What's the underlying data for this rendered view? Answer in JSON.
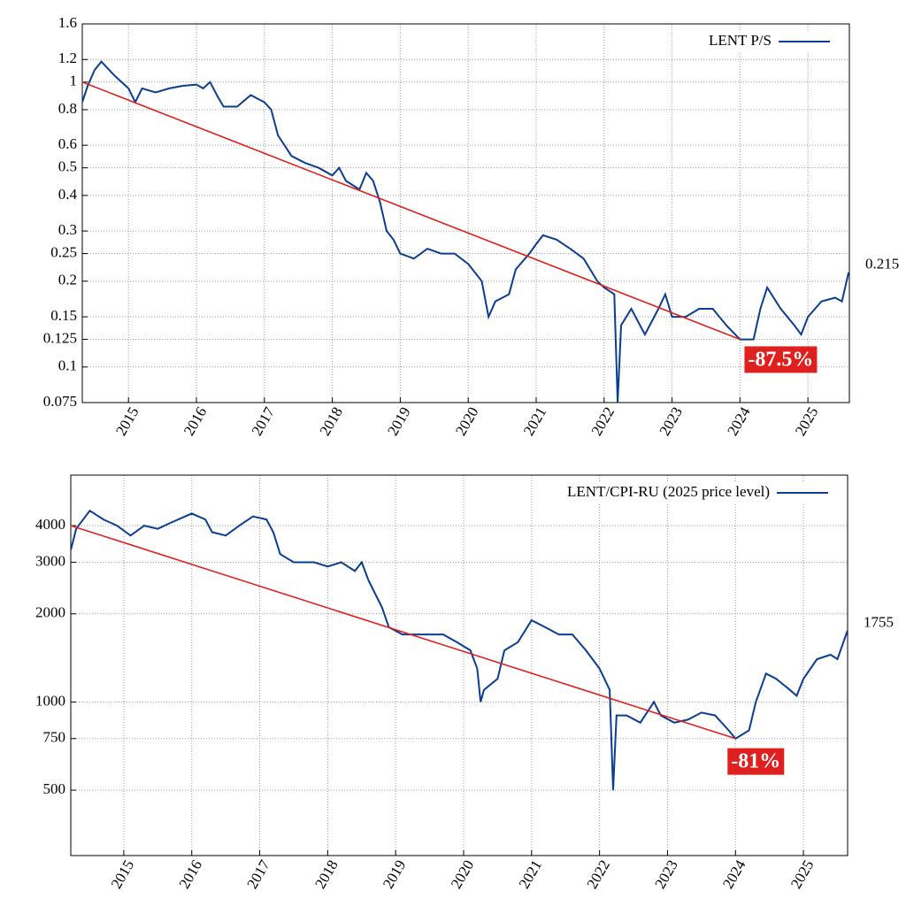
{
  "chart_data": [
    {
      "type": "line",
      "log_y": true,
      "grid": true,
      "legend": "top-right",
      "x": [
        2014.32,
        2014.4,
        2014.5,
        2014.6,
        2014.8,
        2015.0,
        2015.1,
        2015.2,
        2015.4,
        2015.6,
        2015.8,
        2016.0,
        2016.1,
        2016.2,
        2016.3,
        2016.4,
        2016.6,
        2016.8,
        2017.0,
        2017.1,
        2017.2,
        2017.4,
        2017.6,
        2017.8,
        2018.0,
        2018.1,
        2018.2,
        2018.4,
        2018.5,
        2018.6,
        2018.7,
        2018.8,
        2018.9,
        2019.0,
        2019.2,
        2019.4,
        2019.6,
        2019.8,
        2020.0,
        2020.2,
        2020.3,
        2020.4,
        2020.6,
        2020.7,
        2020.9,
        2021.0,
        2021.1,
        2021.3,
        2021.5,
        2021.7,
        2021.9,
        2022.0,
        2022.15,
        2022.2,
        2022.25,
        2022.4,
        2022.6,
        2022.8,
        2022.9,
        2023.0,
        2023.2,
        2023.4,
        2023.6,
        2023.8,
        2024.0,
        2024.2,
        2024.3,
        2024.4,
        2024.6,
        2024.8,
        2024.9,
        2025.0,
        2025.2,
        2025.4,
        2025.5,
        2025.6
      ],
      "series": [
        {
          "name": "LENT P/S",
          "color": "#0b3d91",
          "values": [
            0.85,
            0.97,
            1.1,
            1.18,
            1.05,
            0.95,
            0.85,
            0.95,
            0.92,
            0.95,
            0.97,
            0.98,
            0.95,
            1.0,
            0.9,
            0.82,
            0.82,
            0.9,
            0.85,
            0.8,
            0.65,
            0.55,
            0.52,
            0.5,
            0.47,
            0.5,
            0.45,
            0.42,
            0.48,
            0.45,
            0.38,
            0.3,
            0.28,
            0.25,
            0.24,
            0.26,
            0.25,
            0.25,
            0.23,
            0.2,
            0.15,
            0.17,
            0.18,
            0.22,
            0.25,
            0.27,
            0.29,
            0.28,
            0.26,
            0.24,
            0.2,
            0.19,
            0.18,
            0.075,
            0.14,
            0.16,
            0.13,
            0.16,
            0.18,
            0.15,
            0.15,
            0.16,
            0.16,
            0.14,
            0.125,
            0.125,
            0.16,
            0.19,
            0.16,
            0.14,
            0.13,
            0.15,
            0.17,
            0.175,
            0.17,
            0.215
          ]
        }
      ],
      "trend": {
        "color": "#e0201e",
        "x": [
          2014.32,
          2024.0
        ],
        "y": [
          1,
          0.125
        ]
      },
      "annotations": [
        {
          "text": "-87.5%",
          "x": 2024.6,
          "y": 0.105
        }
      ],
      "xlim": [
        2014.32,
        2025.61
      ],
      "xticks": [
        2015,
        2016,
        2017,
        2018,
        2019,
        2020,
        2021,
        2022,
        2023,
        2024,
        2025
      ],
      "ylim": [
        0.075,
        1.6
      ],
      "yticks": [
        0.075,
        0.1,
        0.125,
        0.15,
        0.2,
        0.25,
        0.3,
        0.4,
        0.5,
        0.6,
        0.8,
        1,
        1.2,
        1.6
      ]
    },
    {
      "type": "line",
      "log_y": true,
      "grid": true,
      "legend": "top-right",
      "x": [
        2014.22,
        2014.3,
        2014.5,
        2014.7,
        2014.9,
        2015.1,
        2015.3,
        2015.5,
        2015.7,
        2016.0,
        2016.2,
        2016.3,
        2016.5,
        2016.7,
        2016.9,
        2017.1,
        2017.2,
        2017.3,
        2017.5,
        2017.8,
        2018.0,
        2018.2,
        2018.4,
        2018.5,
        2018.6,
        2018.8,
        2018.9,
        2019.1,
        2019.3,
        2019.5,
        2019.7,
        2019.9,
        2020.1,
        2020.2,
        2020.25,
        2020.3,
        2020.5,
        2020.6,
        2020.8,
        2021.0,
        2021.2,
        2021.4,
        2021.6,
        2021.8,
        2022.0,
        2022.15,
        2022.2,
        2022.25,
        2022.4,
        2022.6,
        2022.8,
        2022.9,
        2023.1,
        2023.3,
        2023.5,
        2023.7,
        2023.9,
        2024.0,
        2024.2,
        2024.3,
        2024.45,
        2024.6,
        2024.8,
        2024.9,
        2025.0,
        2025.2,
        2025.4,
        2025.5,
        2025.65
      ],
      "series": [
        {
          "name": "LENT/CPI-RU (2025 price level)",
          "color": "#0b3d91",
          "values": [
            3300,
            3900,
            4500,
            4200,
            4000,
            3700,
            4000,
            3900,
            4100,
            4400,
            4200,
            3800,
            3700,
            4000,
            4300,
            4200,
            3800,
            3200,
            3000,
            3000,
            2900,
            3000,
            2800,
            3000,
            2600,
            2100,
            1800,
            1700,
            1700,
            1700,
            1700,
            1600,
            1500,
            1300,
            1000,
            1100,
            1200,
            1500,
            1600,
            1900,
            1800,
            1700,
            1700,
            1500,
            1300,
            1100,
            500,
            900,
            900,
            850,
            1000,
            900,
            850,
            870,
            920,
            900,
            800,
            750,
            800,
            1000,
            1250,
            1200,
            1100,
            1050,
            1200,
            1400,
            1450,
            1400,
            1755
          ]
        }
      ],
      "trend": {
        "color": "#e0201e",
        "x": [
          2014.22,
          2024.0
        ],
        "y": [
          4000,
          750
        ]
      },
      "annotations": [
        {
          "text": "-81%",
          "x": 2024.3,
          "y": 620
        }
      ],
      "xlim": [
        2014.22,
        2025.65
      ],
      "xticks": [
        2015,
        2016,
        2017,
        2018,
        2019,
        2020,
        2021,
        2022,
        2023,
        2024,
        2025
      ],
      "ylim": [
        299,
        5950
      ],
      "yticks": [
        500,
        750,
        1000,
        2000,
        3000,
        4000
      ]
    }
  ]
}
